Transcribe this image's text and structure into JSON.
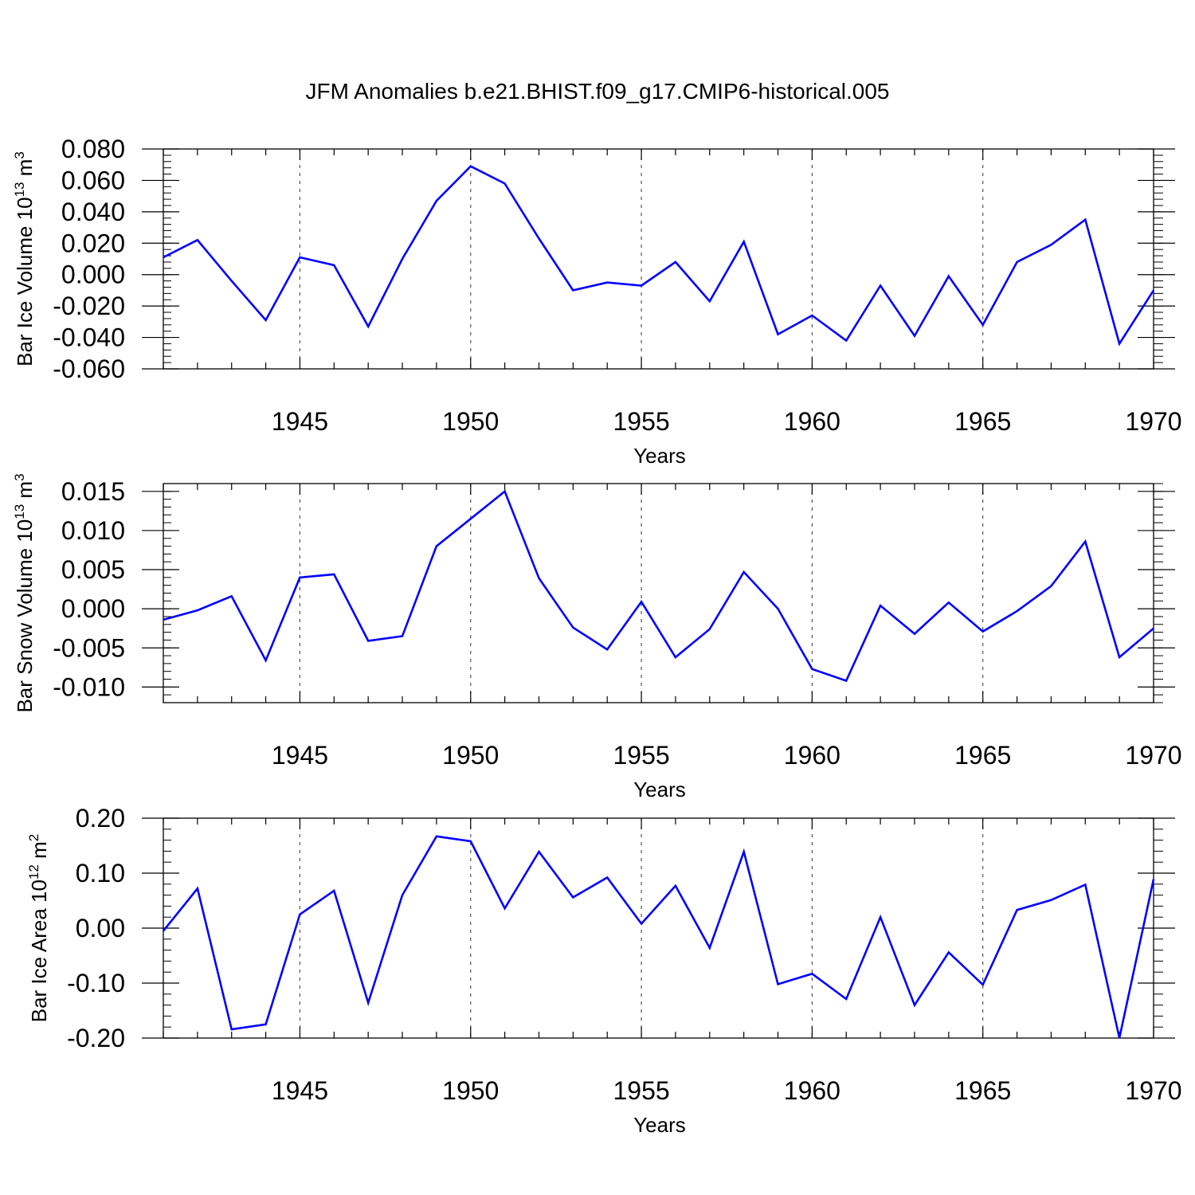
{
  "title": "JFM Anomalies b.e21.BHIST.f09_g17.CMIP6-historical.005",
  "colors": {
    "line": "#0000ff",
    "axis": "#000000",
    "grid": "#555555",
    "background": "#ffffff"
  },
  "chart_data": [
    {
      "type": "line",
      "xlabel": "Years",
      "ylabel": "Bar Ice Volume 10",
      "ylabel_exp": "13",
      "ylabel_unit": "m",
      "ylabel_unit_exp": "3",
      "xlim": [
        1941,
        1970
      ],
      "ylim": [
        -0.06,
        0.08
      ],
      "x_ticks": [
        1945,
        1950,
        1955,
        1960,
        1965,
        1970
      ],
      "x_tick_labels": [
        "1945",
        "1950",
        "1955",
        "1960",
        "1965",
        "1970"
      ],
      "y_ticks": [
        -0.06,
        -0.04,
        -0.02,
        0.0,
        0.02,
        0.04,
        0.06,
        0.08
      ],
      "y_tick_labels": [
        "-0.060",
        "-0.040",
        "-0.020",
        "0.000",
        "0.020",
        "0.040",
        "0.060",
        "0.080"
      ],
      "vertical_grid": true,
      "x": [
        1941,
        1942,
        1943,
        1944,
        1945,
        1946,
        1947,
        1948,
        1949,
        1950,
        1951,
        1952,
        1953,
        1954,
        1955,
        1956,
        1957,
        1958,
        1959,
        1960,
        1961,
        1962,
        1963,
        1964,
        1965,
        1966,
        1967,
        1968,
        1969,
        1970
      ],
      "values": [
        0.011,
        0.022,
        -0.004,
        -0.029,
        0.011,
        0.006,
        -0.033,
        0.01,
        0.047,
        0.069,
        0.058,
        0.023,
        -0.01,
        -0.005,
        -0.007,
        0.008,
        -0.017,
        0.021,
        -0.038,
        -0.026,
        -0.042,
        -0.007,
        -0.039,
        -0.001,
        -0.032,
        0.008,
        0.019,
        0.035,
        -0.044,
        -0.01
      ]
    },
    {
      "type": "line",
      "xlabel": "Years",
      "ylabel": "Bar Snow Volume 10",
      "ylabel_exp": "13",
      "ylabel_unit": "m",
      "ylabel_unit_exp": "3",
      "xlim": [
        1941,
        1970
      ],
      "ylim": [
        -0.012,
        0.016
      ],
      "x_ticks": [
        1945,
        1950,
        1955,
        1960,
        1965,
        1970
      ],
      "x_tick_labels": [
        "1945",
        "1950",
        "1955",
        "1960",
        "1965",
        "1970"
      ],
      "y_ticks": [
        -0.01,
        -0.005,
        0.0,
        0.005,
        0.01,
        0.015
      ],
      "y_tick_labels": [
        "-0.010",
        "-0.005",
        "0.000",
        "0.005",
        "0.010",
        "0.015"
      ],
      "vertical_grid": true,
      "x": [
        1941,
        1942,
        1943,
        1944,
        1945,
        1946,
        1947,
        1948,
        1949,
        1950,
        1951,
        1952,
        1953,
        1954,
        1955,
        1956,
        1957,
        1958,
        1959,
        1960,
        1961,
        1962,
        1963,
        1964,
        1965,
        1966,
        1967,
        1968,
        1969,
        1970
      ],
      "values": [
        -0.0014,
        -0.0002,
        0.0016,
        -0.0066,
        0.004,
        0.0044,
        -0.0041,
        -0.0035,
        0.008,
        0.0115,
        0.015,
        0.0039,
        -0.0024,
        -0.0052,
        0.0009,
        -0.0062,
        -0.0026,
        0.0047,
        0.0,
        -0.0077,
        -0.0092,
        0.0004,
        -0.0032,
        0.0008,
        -0.0029,
        -0.0003,
        0.0029,
        0.0086,
        -0.0062,
        -0.0025
      ]
    },
    {
      "type": "line",
      "xlabel": "Years",
      "ylabel": "Bar Ice Area 10",
      "ylabel_exp": "12",
      "ylabel_unit": "m",
      "ylabel_unit_exp": "2",
      "xlim": [
        1941,
        1970
      ],
      "ylim": [
        -0.2,
        0.2
      ],
      "x_ticks": [
        1945,
        1950,
        1955,
        1960,
        1965,
        1970
      ],
      "x_tick_labels": [
        "1945",
        "1950",
        "1955",
        "1960",
        "1965",
        "1970"
      ],
      "y_ticks": [
        -0.2,
        -0.1,
        0.0,
        0.1,
        0.2
      ],
      "y_tick_labels": [
        "-0.20",
        "-0.10",
        "0.00",
        "0.10",
        "0.20"
      ],
      "vertical_grid": true,
      "x": [
        1941,
        1942,
        1943,
        1944,
        1945,
        1946,
        1947,
        1948,
        1949,
        1950,
        1951,
        1952,
        1953,
        1954,
        1955,
        1956,
        1957,
        1958,
        1959,
        1960,
        1961,
        1962,
        1963,
        1964,
        1965,
        1966,
        1967,
        1968,
        1969,
        1970
      ],
      "values": [
        -0.005,
        0.072,
        -0.184,
        -0.175,
        0.025,
        0.068,
        -0.136,
        0.06,
        0.167,
        0.158,
        0.036,
        0.139,
        0.056,
        0.092,
        0.008,
        0.077,
        -0.036,
        0.139,
        -0.102,
        -0.083,
        -0.129,
        0.02,
        -0.14,
        -0.044,
        -0.103,
        0.033,
        0.051,
        0.079,
        -0.2,
        0.089
      ]
    }
  ]
}
